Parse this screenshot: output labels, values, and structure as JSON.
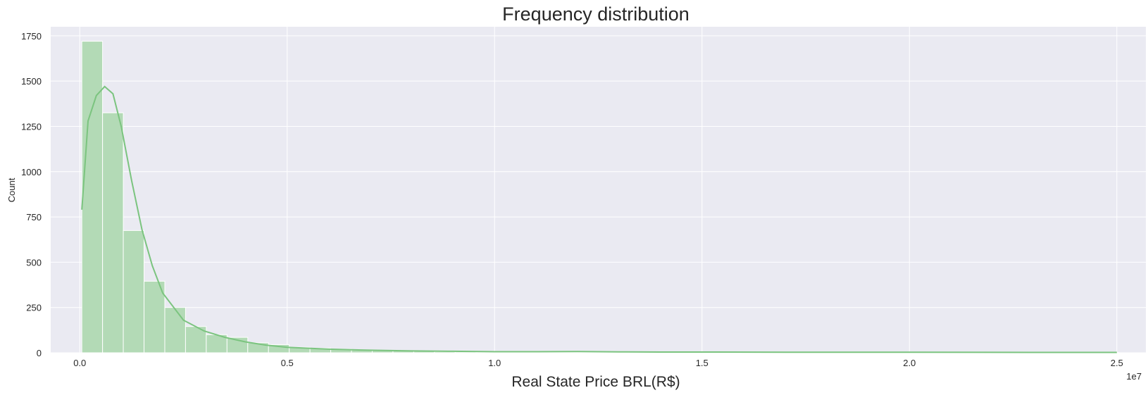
{
  "chart_data": {
    "type": "bar",
    "subtype": "histogram-with-kde",
    "title": "Frequency distribution",
    "xlabel": "Real State Price BRL(R$)",
    "ylabel": "Count",
    "x_offset_label": "1e7",
    "xlim": [
      -0.07,
      2.57
    ],
    "ylim": [
      0,
      1800
    ],
    "x_ticks": [
      0.0,
      0.5,
      1.0,
      1.5,
      2.0,
      2.5
    ],
    "x_tick_labels": [
      "0.0",
      "0.5",
      "1.0",
      "1.5",
      "2.0",
      "2.5"
    ],
    "y_ticks": [
      0,
      250,
      500,
      750,
      1000,
      1250,
      1500,
      1750
    ],
    "y_tick_labels": [
      "0",
      "250",
      "500",
      "750",
      "1000",
      "1250",
      "1500",
      "1750"
    ],
    "grid": true,
    "colors": {
      "background": "#eaeaf2",
      "grid": "#ffffff",
      "bar_fill": "#b3dab6",
      "bar_edge": "#ffffff",
      "kde_line": "#7bc47f"
    },
    "bins": {
      "start": 0.005,
      "width": 0.05,
      "counts": [
        1720,
        1325,
        675,
        395,
        250,
        145,
        100,
        85,
        55,
        45,
        30,
        25,
        20,
        15,
        12,
        10,
        8,
        6,
        5,
        4,
        4,
        4,
        4,
        4,
        3,
        3,
        3,
        3,
        3,
        3,
        2,
        2,
        2,
        2,
        2,
        2,
        2,
        2,
        2,
        2,
        2,
        1,
        1,
        1,
        1,
        1,
        1,
        1,
        1,
        1
      ]
    },
    "kde": {
      "x": [
        0.005,
        0.02,
        0.04,
        0.06,
        0.08,
        0.1,
        0.125,
        0.15,
        0.175,
        0.2,
        0.25,
        0.3,
        0.35,
        0.4,
        0.45,
        0.5,
        0.6,
        0.7,
        0.8,
        0.9,
        1.0,
        1.1,
        1.2,
        1.3,
        1.4,
        1.5,
        1.7,
        2.0,
        2.3,
        2.5
      ],
      "y": [
        790,
        1280,
        1420,
        1470,
        1430,
        1250,
        950,
        680,
        480,
        330,
        180,
        120,
        85,
        60,
        42,
        30,
        20,
        14,
        10,
        8,
        6,
        6,
        7,
        5,
        4,
        4,
        3,
        3,
        2,
        2
      ]
    }
  }
}
